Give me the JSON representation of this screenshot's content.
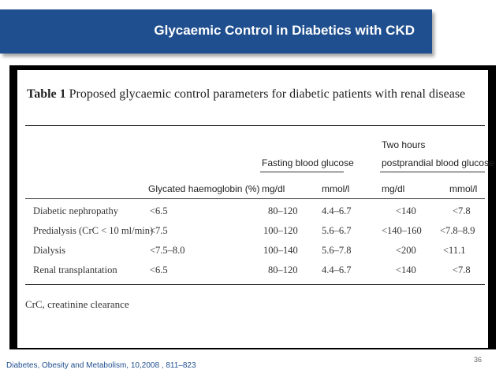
{
  "slide": {
    "title": "Glycaemic Control in Diabetics with  CKD",
    "citation": "Diabetes, Obesity and Metabolism, 10,2008 , 811–823",
    "page_number": "36",
    "colors": {
      "banner": "#1f4f8f",
      "frame": "#000000"
    }
  },
  "table": {
    "caption_label": "Table 1",
    "caption_text": "Proposed glycaemic control parameters for diabetic patients with renal disease",
    "group_headers": {
      "fasting": "Fasting blood glucose",
      "postprandial_line1": "Two hours",
      "postprandial_line2": "postprandial blood glucose"
    },
    "columns": [
      "Glycated haemoglobin (%)",
      "mg/dl",
      "mmol/l",
      "mg/dl",
      "mmol/l"
    ],
    "rows": [
      {
        "label": "Diabetic nephropathy",
        "hba1c": "<6.5",
        "f_mgdl": "80–120",
        "f_mmol": "4.4–6.7",
        "p_mgdl": "<140",
        "p_mmol": "<7.8"
      },
      {
        "label": "Predialysis (CrC < 10 ml/min)",
        "hba1c": "<7.5",
        "f_mgdl": "100–120",
        "f_mmol": "5.6–6.7",
        "p_mgdl": "<140–160",
        "p_mmol": "<7.8–8.9"
      },
      {
        "label": "Dialysis",
        "hba1c": "<7.5–8.0",
        "f_mgdl": "100–140",
        "f_mmol": "5.6–7.8",
        "p_mgdl": "<200",
        "p_mmol": "<11.1"
      },
      {
        "label": "Renal transplantation",
        "hba1c": "<6.5",
        "f_mgdl": "80–120",
        "f_mmol": "4.4–6.7",
        "p_mgdl": "<140",
        "p_mmol": "<7.8"
      }
    ],
    "footnote": "CrC, creatinine clearance"
  }
}
